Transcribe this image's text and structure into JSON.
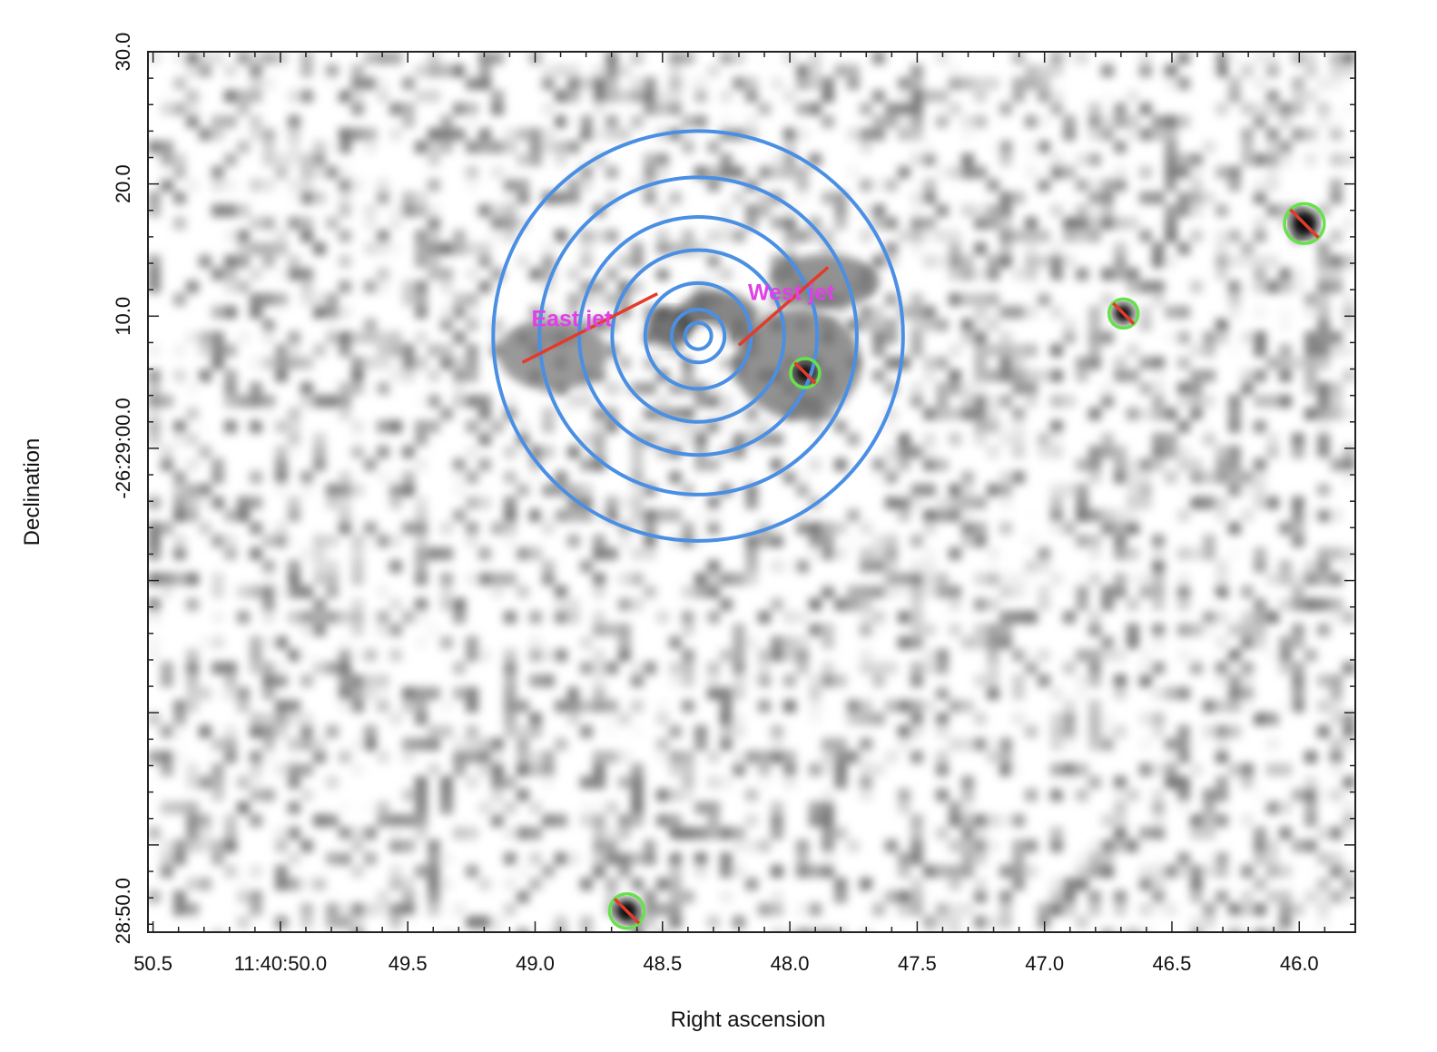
{
  "chart_data": {
    "type": "heatmap",
    "title": "",
    "xlabel": "Right ascension",
    "ylabel": "Declination",
    "xlim": [
      50.52,
      45.78
    ],
    "ylim": [
      -32.0,
      -25.34
    ],
    "x_ticks": [
      {
        "value": 50.5,
        "label": "50.5"
      },
      {
        "value": 50.0,
        "label": "11:40:50.0"
      },
      {
        "value": 49.5,
        "label": "49.5"
      },
      {
        "value": 49.0,
        "label": "49.0"
      },
      {
        "value": 48.5,
        "label": "48.5"
      },
      {
        "value": 48.0,
        "label": "48.0"
      },
      {
        "value": 47.5,
        "label": "47.5"
      },
      {
        "value": 47.0,
        "label": "47.0"
      },
      {
        "value": 46.5,
        "label": "46.5"
      },
      {
        "value": 46.0,
        "label": "46.0"
      }
    ],
    "y_ticks": [
      {
        "value": -25.5,
        "label": "28:50.0"
      },
      {
        "value": -29.0,
        "label": "-26:29:00.0"
      },
      {
        "value": -30.0,
        "label": "10.0"
      },
      {
        "value": -31.0,
        "label": "20.0"
      },
      {
        "value": -32.0,
        "label": "30.0"
      }
    ],
    "colormap": "grayscale-inverted",
    "center": {
      "ra": 48.36,
      "dec": -29.85
    },
    "annulus_radii_arcmin": [
      0.1,
      0.2,
      0.4,
      0.65,
      0.9,
      1.2,
      1.55
    ],
    "excluded_sources": [
      {
        "ra": 48.64,
        "dec": -25.5,
        "radius": 0.13
      },
      {
        "ra": 47.94,
        "dec": -29.57,
        "radius": 0.11
      },
      {
        "ra": 46.69,
        "dec": -30.02,
        "radius": 0.11
      },
      {
        "ra": 45.98,
        "dec": -30.7,
        "radius": 0.15
      }
    ],
    "jet_regions": [
      {
        "label": "East jet",
        "ra_range": [
          49.05,
          48.52
        ],
        "dec_range": [
          -29.65,
          -30.17
        ]
      },
      {
        "label": "West jet",
        "ra_range": [
          48.2,
          47.85
        ],
        "dec_range": [
          -29.78,
          -30.37
        ]
      }
    ],
    "colors": {
      "annuli": "#4a8fe3",
      "excluded_circle": "#66e14c",
      "exclusion_slash": "#e53a2a",
      "jet_box": "#e040e6",
      "frame": "#222222"
    }
  }
}
